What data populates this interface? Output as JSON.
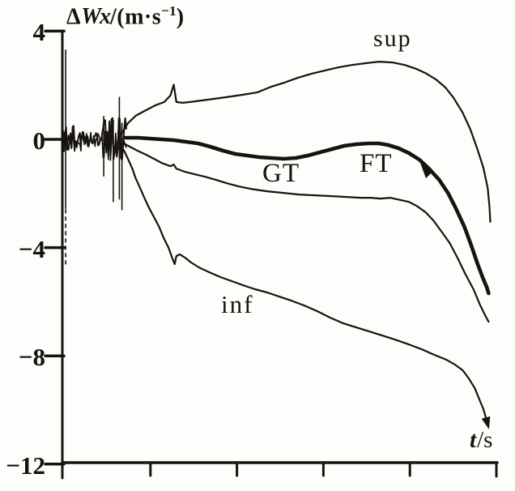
{
  "figure": {
    "background": "#fdfdfb",
    "ink_color": "#17130d"
  },
  "chart_data": {
    "type": "line",
    "title": "",
    "ylabel": {
      "prefix": "Δ",
      "symbol": "Wx",
      "unit_pre": "/(m·s",
      "unit_sup": "−1",
      "unit_post": ")"
    },
    "xlabel": {
      "symbol": "t",
      "unit": "/s"
    },
    "y_axis": {
      "range": [
        -12,
        4
      ],
      "tick_values": [
        4,
        0,
        -4,
        -8,
        -12
      ],
      "tick_labels": [
        "4",
        "0",
        "−4",
        "−8",
        "−12"
      ]
    },
    "x_axis": {
      "range": [
        0,
        5.02
      ],
      "tick_positions": [
        1,
        2,
        3,
        4,
        5
      ],
      "tick_labels": [
        "",
        "",
        "",
        "",
        ""
      ],
      "ticks_unlabeled": true
    },
    "grid": false,
    "legend": "inline-curve-labels",
    "series": [
      {
        "name": "sup",
        "style": "thin",
        "points": [
          [
            0.66,
            0.18
          ],
          [
            0.74,
            0.6
          ],
          [
            0.83,
            0.87
          ],
          [
            0.95,
            1.08
          ],
          [
            1.06,
            1.26
          ],
          [
            1.16,
            1.38
          ],
          [
            1.23,
            1.62
          ],
          [
            1.27,
            2.02
          ],
          [
            1.3,
            1.38
          ],
          [
            1.37,
            1.35
          ],
          [
            1.46,
            1.38
          ],
          [
            1.6,
            1.44
          ],
          [
            1.88,
            1.56
          ],
          [
            2.07,
            1.65
          ],
          [
            2.24,
            1.74
          ],
          [
            2.4,
            1.95
          ],
          [
            2.55,
            2.1
          ],
          [
            2.71,
            2.28
          ],
          [
            2.87,
            2.43
          ],
          [
            3.01,
            2.54
          ],
          [
            3.17,
            2.66
          ],
          [
            3.33,
            2.75
          ],
          [
            3.48,
            2.81
          ],
          [
            3.64,
            2.87
          ],
          [
            3.8,
            2.84
          ],
          [
            3.94,
            2.75
          ],
          [
            4.08,
            2.6
          ],
          [
            4.18,
            2.45
          ],
          [
            4.3,
            2.22
          ],
          [
            4.41,
            1.92
          ],
          [
            4.5,
            1.56
          ],
          [
            4.61,
            0.99
          ],
          [
            4.7,
            0.36
          ],
          [
            4.78,
            -0.36
          ],
          [
            4.85,
            -1.05
          ],
          [
            4.9,
            -1.8
          ],
          [
            4.92,
            -2.49
          ],
          [
            4.93,
            -3.05
          ]
        ]
      },
      {
        "name": "FT",
        "style": "thick",
        "points": [
          [
            0.71,
            0.06
          ],
          [
            0.85,
            0.06
          ],
          [
            0.99,
            0.03
          ],
          [
            1.13,
            0.0
          ],
          [
            1.27,
            -0.03
          ],
          [
            1.41,
            -0.09
          ],
          [
            1.55,
            -0.15
          ],
          [
            1.69,
            -0.27
          ],
          [
            1.84,
            -0.42
          ],
          [
            1.98,
            -0.54
          ],
          [
            2.12,
            -0.6
          ],
          [
            2.26,
            -0.66
          ],
          [
            2.4,
            -0.69
          ],
          [
            2.54,
            -0.72
          ],
          [
            2.68,
            -0.69
          ],
          [
            2.82,
            -0.6
          ],
          [
            2.96,
            -0.48
          ],
          [
            3.1,
            -0.36
          ],
          [
            3.24,
            -0.24
          ],
          [
            3.38,
            -0.18
          ],
          [
            3.52,
            -0.15
          ],
          [
            3.64,
            -0.15
          ],
          [
            3.75,
            -0.21
          ],
          [
            3.87,
            -0.33
          ],
          [
            3.99,
            -0.51
          ],
          [
            4.11,
            -0.75
          ],
          [
            4.22,
            -1.08
          ],
          [
            4.34,
            -1.5
          ],
          [
            4.44,
            -1.98
          ],
          [
            4.53,
            -2.54
          ],
          [
            4.63,
            -3.23
          ],
          [
            4.71,
            -3.92
          ],
          [
            4.78,
            -4.58
          ],
          [
            4.84,
            -5.09
          ],
          [
            4.89,
            -5.48
          ],
          [
            4.91,
            -5.69
          ]
        ]
      },
      {
        "name": "GT",
        "style": "thin",
        "points": [
          [
            0.69,
            -0.15
          ],
          [
            0.76,
            -0.27
          ],
          [
            0.85,
            -0.42
          ],
          [
            0.95,
            -0.57
          ],
          [
            1.04,
            -0.72
          ],
          [
            1.13,
            -0.87
          ],
          [
            1.23,
            -0.99
          ],
          [
            1.27,
            -0.93
          ],
          [
            1.3,
            -1.08
          ],
          [
            1.4,
            -1.2
          ],
          [
            1.51,
            -1.29
          ],
          [
            1.63,
            -1.38
          ],
          [
            1.76,
            -1.5
          ],
          [
            1.88,
            -1.62
          ],
          [
            2.02,
            -1.74
          ],
          [
            2.16,
            -1.83
          ],
          [
            2.35,
            -1.92
          ],
          [
            2.54,
            -1.98
          ],
          [
            2.72,
            -2.04
          ],
          [
            2.91,
            -2.07
          ],
          [
            3.1,
            -2.1
          ],
          [
            3.27,
            -2.13
          ],
          [
            3.43,
            -2.16
          ],
          [
            3.55,
            -2.16
          ],
          [
            3.66,
            -2.19
          ],
          [
            3.77,
            -2.16
          ],
          [
            3.9,
            -2.25
          ],
          [
            3.99,
            -2.31
          ],
          [
            4.08,
            -2.46
          ],
          [
            4.18,
            -2.69
          ],
          [
            4.27,
            -2.99
          ],
          [
            4.36,
            -3.38
          ],
          [
            4.46,
            -3.83
          ],
          [
            4.55,
            -4.37
          ],
          [
            4.64,
            -4.97
          ],
          [
            4.74,
            -5.57
          ],
          [
            4.81,
            -6.11
          ],
          [
            4.87,
            -6.5
          ],
          [
            4.91,
            -6.74
          ]
        ]
      },
      {
        "name": "inf",
        "style": "thin",
        "arrow_end": true,
        "points": [
          [
            0.69,
            -0.39
          ],
          [
            0.74,
            -0.72
          ],
          [
            0.79,
            -1.08
          ],
          [
            0.83,
            -1.44
          ],
          [
            0.88,
            -1.8
          ],
          [
            0.93,
            -2.16
          ],
          [
            0.98,
            -2.51
          ],
          [
            1.04,
            -2.87
          ],
          [
            1.1,
            -3.23
          ],
          [
            1.15,
            -3.62
          ],
          [
            1.21,
            -4.01
          ],
          [
            1.25,
            -4.37
          ],
          [
            1.28,
            -4.61
          ],
          [
            1.3,
            -4.31
          ],
          [
            1.34,
            -4.25
          ],
          [
            1.4,
            -4.37
          ],
          [
            1.47,
            -4.55
          ],
          [
            1.56,
            -4.73
          ],
          [
            1.68,
            -4.91
          ],
          [
            1.81,
            -5.09
          ],
          [
            1.94,
            -5.24
          ],
          [
            2.07,
            -5.39
          ],
          [
            2.21,
            -5.54
          ],
          [
            2.35,
            -5.66
          ],
          [
            2.49,
            -5.81
          ],
          [
            2.63,
            -5.96
          ],
          [
            2.78,
            -6.14
          ],
          [
            2.93,
            -6.35
          ],
          [
            3.08,
            -6.59
          ],
          [
            3.23,
            -6.8
          ],
          [
            3.38,
            -6.95
          ],
          [
            3.53,
            -7.1
          ],
          [
            3.68,
            -7.25
          ],
          [
            3.83,
            -7.4
          ],
          [
            3.98,
            -7.57
          ],
          [
            4.13,
            -7.75
          ],
          [
            4.28,
            -7.96
          ],
          [
            4.42,
            -8.14
          ],
          [
            4.52,
            -8.32
          ],
          [
            4.61,
            -8.53
          ],
          [
            4.68,
            -8.83
          ],
          [
            4.75,
            -9.19
          ],
          [
            4.8,
            -9.58
          ],
          [
            4.85,
            -9.97
          ],
          [
            4.88,
            -10.3
          ],
          [
            4.9,
            -10.54
          ]
        ]
      }
    ],
    "noise": {
      "description": "initial alignment transient oscillating about 0 near t=0",
      "center_value": 0,
      "segments": [
        {
          "t0": -0.01,
          "t1": 0.2,
          "amp": 0.5
        },
        {
          "t0": 0.2,
          "t1": 0.44,
          "amp": 0.28
        },
        {
          "t0": 0.44,
          "t1": 0.73,
          "amp": 0.8
        }
      ],
      "spikes": [
        {
          "t": 0.02,
          "v1": 3.3,
          "v2": -2.55,
          "dashed": false
        },
        {
          "t": 0.02,
          "v1": -2.6,
          "v2": -4.7,
          "dashed": true
        },
        {
          "t": 0.46,
          "v1": 0.85,
          "v2": -1.35,
          "dashed": false
        },
        {
          "t": 0.57,
          "v1": 0.7,
          "v2": -2.3,
          "dashed": false
        },
        {
          "t": 0.64,
          "v1": 1.55,
          "v2": -2.2,
          "dashed": false
        },
        {
          "t": 0.67,
          "v1": 0.6,
          "v2": -2.6,
          "dashed": false
        }
      ]
    }
  },
  "curve_labels": {
    "sup": "sup",
    "gt": "GT",
    "ft": "FT",
    "inf": "inf"
  }
}
